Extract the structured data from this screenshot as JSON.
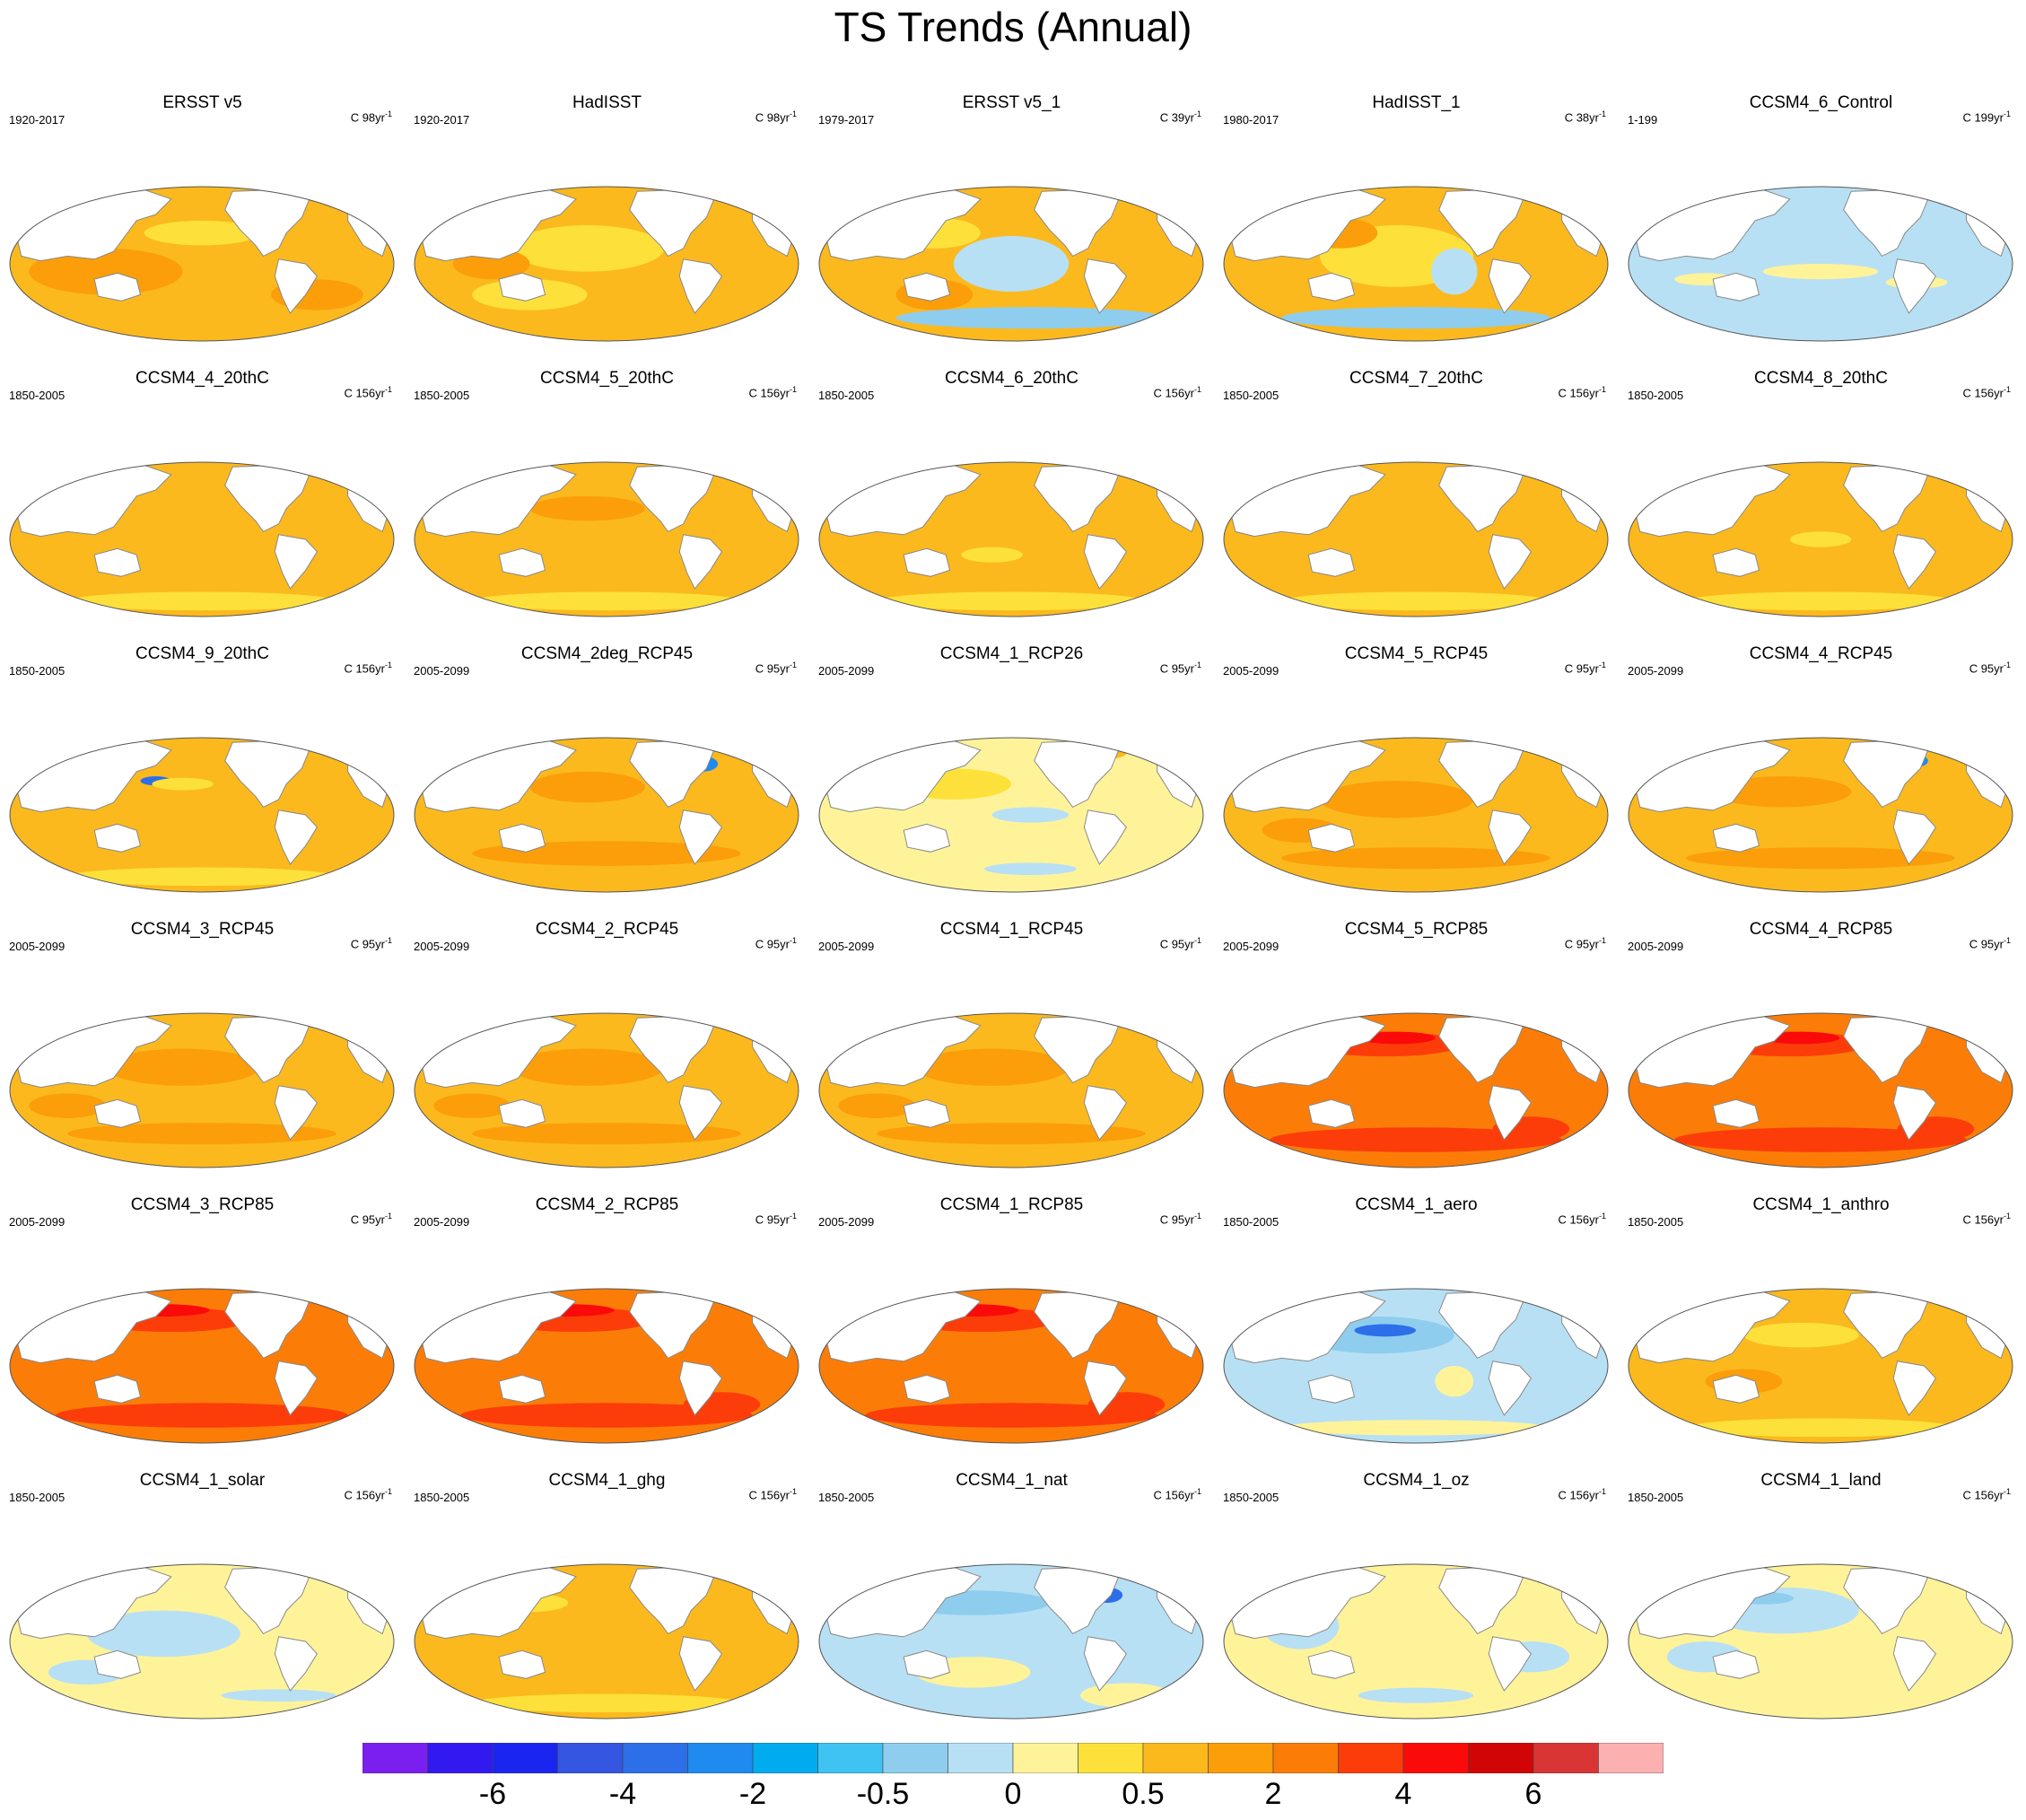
{
  "title": "TS Trends (Annual)",
  "colors": {
    "c-7": "#7b1ff0",
    "c-6": "#3219f0",
    "c-5": "#1a26f0",
    "c-4": "#3456e0",
    "c-3": "#2c6fe8",
    "c-2": "#1f8af0",
    "c-1": "#00acef",
    "c0": "#3fc3f3",
    "c1": "#8fcdee",
    "c2": "#b8e0f4",
    "c3": "#fff39a",
    "c4": "#fde13a",
    "c5": "#fbb91e",
    "c6": "#fb9e0a",
    "c7": "#fb7d08",
    "c8": "#fc3d0a",
    "c9": "#fb0a0a",
    "c10": "#d10505",
    "c11": "#d93535",
    "c12": "#fcb0b0",
    "land": "#ffffff",
    "coast": "#888888"
  },
  "panels": [
    {
      "name": "ERSST v5",
      "period": "1920-2017",
      "unit": "C 98yr",
      "ocean": "#fbb91e",
      "patches": [
        [
          "#fb9e0a",
          0.25,
          0.55,
          0.2,
          0.15
        ],
        [
          "#fde13a",
          0.5,
          0.3,
          0.15,
          0.08
        ],
        [
          "#2c6fe8",
          0.72,
          0.15,
          0.03,
          0.07
        ],
        [
          "#fb9e0a",
          0.8,
          0.7,
          0.12,
          0.1
        ]
      ]
    },
    {
      "name": "HadISST",
      "period": "1920-2017",
      "unit": "C 98yr",
      "ocean": "#fbb91e",
      "patches": [
        [
          "#fde13a",
          0.45,
          0.4,
          0.2,
          0.15
        ],
        [
          "#fde13a",
          0.3,
          0.7,
          0.15,
          0.1
        ],
        [
          "#1f8af0",
          0.73,
          0.15,
          0.03,
          0.07
        ],
        [
          "#fb9e0a",
          0.2,
          0.5,
          0.1,
          0.1
        ]
      ]
    },
    {
      "name": "ERSST v5_1",
      "period": "1979-2017",
      "unit": "C 39yr",
      "ocean": "#fbb91e",
      "patches": [
        [
          "#b8e0f4",
          0.5,
          0.5,
          0.15,
          0.18
        ],
        [
          "#8fcdee",
          0.55,
          0.85,
          0.35,
          0.07
        ],
        [
          "#fde13a",
          0.3,
          0.3,
          0.12,
          0.1
        ],
        [
          "#fb9e0a",
          0.3,
          0.7,
          0.1,
          0.1
        ]
      ]
    },
    {
      "name": "HadISST_1",
      "period": "1980-2017",
      "unit": "C 38yr",
      "ocean": "#fbb91e",
      "patches": [
        [
          "#fde13a",
          0.45,
          0.45,
          0.2,
          0.2
        ],
        [
          "#8fcdee",
          0.5,
          0.85,
          0.35,
          0.07
        ],
        [
          "#b8e0f4",
          0.6,
          0.55,
          0.06,
          0.15
        ],
        [
          "#fb9e0a",
          0.3,
          0.3,
          0.1,
          0.1
        ]
      ]
    },
    {
      "name": "CCSM4_6_Control",
      "period": "1-199",
      "unit": "C 199yr",
      "ocean": "#b8e0f4",
      "patches": [
        [
          "#fff39a",
          0.5,
          0.55,
          0.15,
          0.05
        ],
        [
          "#fff39a",
          0.75,
          0.62,
          0.08,
          0.04
        ],
        [
          "#fff39a",
          0.2,
          0.6,
          0.08,
          0.04
        ]
      ]
    },
    {
      "name": "CCSM4_4_20thC",
      "period": "1850-2005",
      "unit": "C 156yr",
      "ocean": "#fbb91e",
      "patches": [
        [
          "#fde13a",
          0.5,
          0.9,
          0.35,
          0.06
        ],
        [
          "#2c6fe8",
          0.73,
          0.15,
          0.03,
          0.05
        ]
      ]
    },
    {
      "name": "CCSM4_5_20thC",
      "period": "1850-2005",
      "unit": "C 156yr",
      "ocean": "#fbb91e",
      "patches": [
        [
          "#fde13a",
          0.5,
          0.9,
          0.35,
          0.06
        ],
        [
          "#fb9e0a",
          0.45,
          0.3,
          0.15,
          0.08
        ],
        [
          "#2c6fe8",
          0.73,
          0.15,
          0.03,
          0.05
        ]
      ]
    },
    {
      "name": "CCSM4_6_20thC",
      "period": "1850-2005",
      "unit": "C 156yr",
      "ocean": "#fbb91e",
      "patches": [
        [
          "#fde13a",
          0.5,
          0.9,
          0.35,
          0.06
        ],
        [
          "#fde13a",
          0.45,
          0.6,
          0.08,
          0.05
        ],
        [
          "#1f8af0",
          0.73,
          0.15,
          0.02,
          0.04
        ]
      ]
    },
    {
      "name": "CCSM4_7_20thC",
      "period": "1850-2005",
      "unit": "C 156yr",
      "ocean": "#fbb91e",
      "patches": [
        [
          "#fde13a",
          0.5,
          0.9,
          0.35,
          0.06
        ],
        [
          "#1f8af0",
          0.72,
          0.15,
          0.03,
          0.05
        ]
      ]
    },
    {
      "name": "CCSM4_8_20thC",
      "period": "1850-2005",
      "unit": "C 156yr",
      "ocean": "#fbb91e",
      "patches": [
        [
          "#fde13a",
          0.5,
          0.9,
          0.35,
          0.06
        ],
        [
          "#fde13a",
          0.5,
          0.5,
          0.08,
          0.05
        ]
      ]
    },
    {
      "name": "CCSM4_9_20thC",
      "period": "1850-2005",
      "unit": "C 156yr",
      "ocean": "#fbb91e",
      "patches": [
        [
          "#fde13a",
          0.5,
          0.9,
          0.35,
          0.06
        ],
        [
          "#2c6fe8",
          0.38,
          0.28,
          0.04,
          0.03
        ],
        [
          "#fde13a",
          0.45,
          0.3,
          0.08,
          0.04
        ]
      ]
    },
    {
      "name": "CCSM4_2deg_RCP45",
      "period": "2005-2099",
      "unit": "C 95yr",
      "ocean": "#fbb91e",
      "patches": [
        [
          "#fb9e0a",
          0.45,
          0.32,
          0.15,
          0.1
        ],
        [
          "#fb9e0a",
          0.5,
          0.75,
          0.35,
          0.08
        ],
        [
          "#1f8af0",
          0.75,
          0.17,
          0.04,
          0.05
        ]
      ]
    },
    {
      "name": "CCSM4_1_RCP26",
      "period": "2005-2099",
      "unit": "C 95yr",
      "ocean": "#fff39a",
      "patches": [
        [
          "#fde13a",
          0.35,
          0.3,
          0.15,
          0.1
        ],
        [
          "#b8e0f4",
          0.55,
          0.5,
          0.1,
          0.05
        ],
        [
          "#b8e0f4",
          0.55,
          0.85,
          0.12,
          0.04
        ],
        [
          "#fbb91e",
          0.7,
          0.1,
          0.1,
          0.05
        ]
      ]
    },
    {
      "name": "CCSM4_5_RCP45",
      "period": "2005-2099",
      "unit": "C 95yr",
      "ocean": "#fbb91e",
      "patches": [
        [
          "#fb9e0a",
          0.45,
          0.4,
          0.2,
          0.12
        ],
        [
          "#fb9e0a",
          0.5,
          0.78,
          0.35,
          0.07
        ],
        [
          "#fb9e0a",
          0.2,
          0.6,
          0.1,
          0.08
        ]
      ]
    },
    {
      "name": "CCSM4_4_RCP45",
      "period": "2005-2099",
      "unit": "C 95yr",
      "ocean": "#fbb91e",
      "patches": [
        [
          "#fb9e0a",
          0.4,
          0.35,
          0.18,
          0.1
        ],
        [
          "#fb9e0a",
          0.5,
          0.78,
          0.35,
          0.07
        ],
        [
          "#1f8af0",
          0.75,
          0.15,
          0.03,
          0.04
        ]
      ]
    },
    {
      "name": "CCSM4_3_RCP45",
      "period": "2005-2099",
      "unit": "C 95yr",
      "ocean": "#fbb91e",
      "patches": [
        [
          "#fb9e0a",
          0.45,
          0.35,
          0.2,
          0.12
        ],
        [
          "#fb9e0a",
          0.5,
          0.78,
          0.35,
          0.07
        ],
        [
          "#fb9e0a",
          0.15,
          0.6,
          0.1,
          0.08
        ]
      ]
    },
    {
      "name": "CCSM4_2_RCP45",
      "period": "2005-2099",
      "unit": "C 95yr",
      "ocean": "#fbb91e",
      "patches": [
        [
          "#fb9e0a",
          0.45,
          0.35,
          0.2,
          0.12
        ],
        [
          "#fb9e0a",
          0.5,
          0.78,
          0.35,
          0.07
        ],
        [
          "#fb9e0a",
          0.15,
          0.6,
          0.1,
          0.08
        ]
      ]
    },
    {
      "name": "CCSM4_1_RCP45",
      "period": "2005-2099",
      "unit": "C 95yr",
      "ocean": "#fbb91e",
      "patches": [
        [
          "#fb9e0a",
          0.45,
          0.35,
          0.2,
          0.12
        ],
        [
          "#fb9e0a",
          0.5,
          0.78,
          0.35,
          0.07
        ],
        [
          "#fb9e0a",
          0.15,
          0.6,
          0.1,
          0.08
        ]
      ]
    },
    {
      "name": "CCSM4_5_RCP85",
      "period": "2005-2099",
      "unit": "C 95yr",
      "ocean": "#fb7d08",
      "patches": [
        [
          "#fc3d0a",
          0.42,
          0.2,
          0.2,
          0.08
        ],
        [
          "#fc3d0a",
          0.5,
          0.82,
          0.38,
          0.08
        ],
        [
          "#fb0a0a",
          0.45,
          0.16,
          0.1,
          0.04
        ],
        [
          "#fc3d0a",
          0.8,
          0.75,
          0.1,
          0.08
        ]
      ]
    },
    {
      "name": "CCSM4_4_RCP85",
      "period": "2005-2099",
      "unit": "C 95yr",
      "ocean": "#fb7d08",
      "patches": [
        [
          "#fc3d0a",
          0.42,
          0.2,
          0.2,
          0.08
        ],
        [
          "#fc3d0a",
          0.5,
          0.82,
          0.38,
          0.08
        ],
        [
          "#fb0a0a",
          0.45,
          0.16,
          0.1,
          0.04
        ],
        [
          "#fc3d0a",
          0.8,
          0.75,
          0.1,
          0.08
        ]
      ]
    },
    {
      "name": "CCSM4_3_RCP85",
      "period": "2005-2099",
      "unit": "C 95yr",
      "ocean": "#fb7d08",
      "patches": [
        [
          "#fc3d0a",
          0.42,
          0.2,
          0.2,
          0.08
        ],
        [
          "#fc3d0a",
          0.5,
          0.82,
          0.38,
          0.08
        ],
        [
          "#fb0a0a",
          0.4,
          0.14,
          0.12,
          0.04
        ],
        [
          "#1f8af0",
          0.72,
          0.13,
          0.03,
          0.04
        ]
      ]
    },
    {
      "name": "CCSM4_2_RCP85",
      "period": "2005-2099",
      "unit": "C 95yr",
      "ocean": "#fb7d08",
      "patches": [
        [
          "#fc3d0a",
          0.42,
          0.2,
          0.2,
          0.08
        ],
        [
          "#fc3d0a",
          0.5,
          0.82,
          0.38,
          0.08
        ],
        [
          "#fb0a0a",
          0.4,
          0.14,
          0.12,
          0.04
        ],
        [
          "#fc3d0a",
          0.8,
          0.75,
          0.1,
          0.08
        ]
      ]
    },
    {
      "name": "CCSM4_1_RCP85",
      "period": "2005-2099",
      "unit": "C 95yr",
      "ocean": "#fb7d08",
      "patches": [
        [
          "#fc3d0a",
          0.42,
          0.2,
          0.2,
          0.08
        ],
        [
          "#fc3d0a",
          0.5,
          0.82,
          0.38,
          0.08
        ],
        [
          "#fb0a0a",
          0.4,
          0.14,
          0.12,
          0.04
        ],
        [
          "#fc3d0a",
          0.8,
          0.75,
          0.1,
          0.08
        ]
      ]
    },
    {
      "name": "CCSM4_1_aero",
      "period": "1850-2005",
      "unit": "C 156yr",
      "ocean": "#b8e0f4",
      "patches": [
        [
          "#8fcdee",
          0.4,
          0.3,
          0.2,
          0.12
        ],
        [
          "#2c6fe8",
          0.42,
          0.27,
          0.08,
          0.04
        ],
        [
          "#fff39a",
          0.5,
          0.9,
          0.35,
          0.05
        ],
        [
          "#fff39a",
          0.6,
          0.6,
          0.05,
          0.1
        ]
      ]
    },
    {
      "name": "CCSM4_1_anthro",
      "period": "1850-2005",
      "unit": "C 156yr",
      "ocean": "#fbb91e",
      "patches": [
        [
          "#fde13a",
          0.5,
          0.9,
          0.35,
          0.06
        ],
        [
          "#fde13a",
          0.45,
          0.3,
          0.15,
          0.08
        ],
        [
          "#fb9e0a",
          0.3,
          0.6,
          0.1,
          0.08
        ]
      ]
    },
    {
      "name": "CCSM4_1_solar",
      "period": "1850-2005",
      "unit": "C 156yr",
      "ocean": "#fff39a",
      "patches": [
        [
          "#b8e0f4",
          0.4,
          0.45,
          0.2,
          0.15
        ],
        [
          "#b8e0f4",
          0.2,
          0.7,
          0.1,
          0.08
        ],
        [
          "#b8e0f4",
          0.7,
          0.85,
          0.15,
          0.04
        ]
      ]
    },
    {
      "name": "CCSM4_1_ghg",
      "period": "1850-2005",
      "unit": "C 156yr",
      "ocean": "#fbb91e",
      "patches": [
        [
          "#fde13a",
          0.5,
          0.9,
          0.35,
          0.06
        ],
        [
          "#fde13a",
          0.3,
          0.25,
          0.1,
          0.06
        ]
      ]
    },
    {
      "name": "CCSM4_1_nat",
      "period": "1850-2005",
      "unit": "C 156yr",
      "ocean": "#b8e0f4",
      "patches": [
        [
          "#8fcdee",
          0.4,
          0.25,
          0.2,
          0.08
        ],
        [
          "#fff39a",
          0.4,
          0.7,
          0.15,
          0.1
        ],
        [
          "#fff39a",
          0.8,
          0.85,
          0.12,
          0.08
        ],
        [
          "#2c6fe8",
          0.75,
          0.2,
          0.04,
          0.05
        ]
      ]
    },
    {
      "name": "CCSM4_1_oz",
      "period": "1850-2005",
      "unit": "C 156yr",
      "ocean": "#fff39a",
      "patches": [
        [
          "#b8e0f4",
          0.2,
          0.4,
          0.1,
          0.15
        ],
        [
          "#b8e0f4",
          0.8,
          0.6,
          0.1,
          0.1
        ],
        [
          "#1f8af0",
          0.7,
          0.12,
          0.05,
          0.06
        ],
        [
          "#b8e0f4",
          0.5,
          0.85,
          0.15,
          0.05
        ]
      ]
    },
    {
      "name": "CCSM4_1_land",
      "period": "1850-2005",
      "unit": "C 156yr",
      "ocean": "#fff39a",
      "patches": [
        [
          "#b8e0f4",
          0.4,
          0.3,
          0.2,
          0.15
        ],
        [
          "#8fcdee",
          0.35,
          0.22,
          0.08,
          0.04
        ],
        [
          "#b8e0f4",
          0.2,
          0.6,
          0.1,
          0.1
        ]
      ]
    }
  ],
  "colorbar": {
    "colors": [
      "#7b1ff0",
      "#3219f0",
      "#1a26f0",
      "#3456e0",
      "#2c6fe8",
      "#1f8af0",
      "#00acef",
      "#3fc3f3",
      "#8fcdee",
      "#b8e0f4",
      "#fff39a",
      "#fde13a",
      "#fbb91e",
      "#fb9e0a",
      "#fb7d08",
      "#fc3d0a",
      "#fb0a0a",
      "#d10505",
      "#d93535",
      "#fcb0b0"
    ],
    "labels": [
      {
        "text": "-6",
        "boundary": 2
      },
      {
        "text": "-4",
        "boundary": 4
      },
      {
        "text": "-2",
        "boundary": 6
      },
      {
        "text": "-0.5",
        "boundary": 8
      },
      {
        "text": "0",
        "boundary": 10
      },
      {
        "text": "0.5",
        "boundary": 12
      },
      {
        "text": "2",
        "boundary": 14
      },
      {
        "text": "4",
        "boundary": 16
      },
      {
        "text": "6",
        "boundary": 18
      }
    ]
  }
}
